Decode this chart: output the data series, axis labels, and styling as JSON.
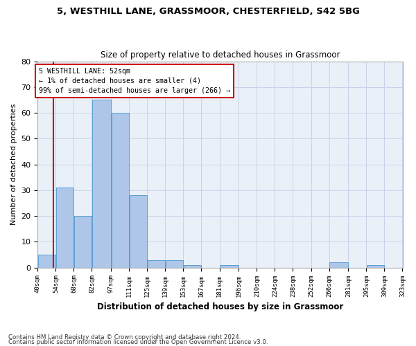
{
  "title1": "5, WESTHILL LANE, GRASSMOOR, CHESTERFIELD, S42 5BG",
  "title2": "Size of property relative to detached houses in Grassmoor",
  "xlabel": "Distribution of detached houses by size in Grassmoor",
  "ylabel": "Number of detached properties",
  "footnote1": "Contains HM Land Registry data © Crown copyright and database right 2024.",
  "footnote2": "Contains public sector information licensed under the Open Government Licence v3.0.",
  "bar_edges": [
    40,
    54,
    68,
    82,
    97,
    111,
    125,
    139,
    153,
    167,
    181,
    196,
    210,
    224,
    238,
    252,
    266,
    281,
    295,
    309,
    323
  ],
  "bar_heights": [
    5,
    31,
    20,
    65,
    60,
    28,
    3,
    3,
    1,
    0,
    1,
    0,
    0,
    0,
    0,
    0,
    2,
    0,
    1,
    0
  ],
  "bar_color": "#aec6e8",
  "bar_edge_color": "#5a9fd4",
  "tick_labels": [
    "40sqm",
    "54sqm",
    "68sqm",
    "82sqm",
    "97sqm",
    "111sqm",
    "125sqm",
    "139sqm",
    "153sqm",
    "167sqm",
    "181sqm",
    "196sqm",
    "210sqm",
    "224sqm",
    "238sqm",
    "252sqm",
    "266sqm",
    "281sqm",
    "295sqm",
    "309sqm",
    "323sqm"
  ],
  "property_size": 52,
  "vline_color": "#cc0000",
  "annotation_line1": "5 WESTHILL LANE: 52sqm",
  "annotation_line2": "← 1% of detached houses are smaller (4)",
  "annotation_line3": "99% of semi-detached houses are larger (266) →",
  "annotation_box_color": "#cc0000",
  "ylim": [
    0,
    80
  ],
  "yticks": [
    0,
    10,
    20,
    30,
    40,
    50,
    60,
    70,
    80
  ],
  "grid_color": "#c8d4e8",
  "bg_color": "#eaf0f8"
}
